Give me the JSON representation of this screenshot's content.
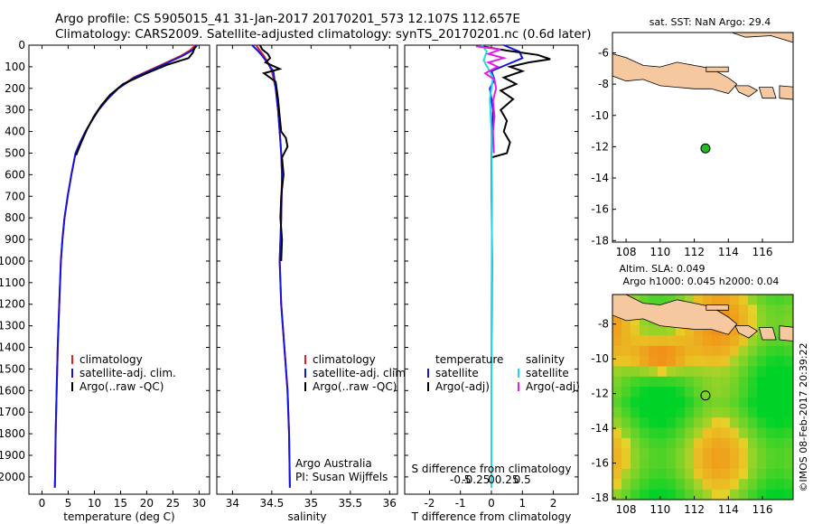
{
  "header": {
    "line1": "Argo profile: CS 5905015_41 31-Jan-2017 20170201_573 12.107S 112.657E",
    "line2": "Climatology: CARS2009. Satellite-adjusted climatology: synTS_20170201.nc (0.6d later)"
  },
  "colors": {
    "climatology": "#e02020",
    "satellite": "#1515e0",
    "argo": "#000000",
    "sal_satellite": "#20d8e8",
    "sal_argo": "#e020e0",
    "land": "#f5c8a0",
    "ocean_sst": "#ffffff",
    "float_marker": "#22bb22"
  },
  "depth_axis": {
    "ticks": [
      0,
      100,
      200,
      300,
      400,
      500,
      600,
      700,
      800,
      900,
      1000,
      1100,
      1200,
      1300,
      1400,
      1500,
      1600,
      1700,
      1800,
      1900,
      2000
    ],
    "ylim": [
      0,
      2080
    ]
  },
  "chart_data": [
    {
      "type": "line",
      "panel": "temperature",
      "xlabel": "temperature (deg C)",
      "xticks": [
        0,
        5,
        10,
        15,
        20,
        25,
        30
      ],
      "xlim": [
        -2.5,
        32
      ],
      "ylim": [
        0,
        2080
      ],
      "legend": [
        "climatology",
        "satellite-adj. clim.",
        "Argo(..raw -QC)"
      ],
      "series": [
        {
          "name": "climatology",
          "color": "#e02020",
          "x": [
            29.2,
            28.9,
            28.2,
            26.5,
            22.0,
            17.5,
            14.5,
            12.5,
            10.8,
            9.5,
            8.3,
            7.3,
            6.4,
            5.6,
            4.9,
            4.3,
            3.9,
            3.6,
            3.3,
            3.0,
            2.8,
            2.6,
            2.5,
            2.45
          ],
          "y": [
            0,
            10,
            25,
            50,
            100,
            150,
            200,
            250,
            300,
            350,
            400,
            450,
            500,
            600,
            700,
            800,
            900,
            1000,
            1200,
            1400,
            1600,
            1800,
            2000,
            2050
          ]
        },
        {
          "name": "satellite-adj. clim.",
          "color": "#1515e0",
          "x": [
            29.6,
            29.3,
            28.6,
            26.8,
            22.3,
            17.7,
            14.6,
            12.5,
            10.8,
            9.5,
            8.3,
            7.3,
            6.4,
            5.6,
            4.9,
            4.3,
            3.9,
            3.6,
            3.3,
            3.0,
            2.8,
            2.6,
            2.5,
            2.45
          ],
          "y": [
            0,
            10,
            25,
            50,
            100,
            150,
            200,
            250,
            300,
            350,
            400,
            450,
            500,
            600,
            700,
            800,
            900,
            1000,
            1200,
            1400,
            1600,
            1800,
            2000,
            2050
          ]
        },
        {
          "name": "Argo(..raw -QC)",
          "color": "#000000",
          "x": [
            29.4,
            29.1,
            28.8,
            28.0,
            24.0,
            20.0,
            15.5,
            13.0,
            11.3,
            9.9,
            8.6,
            7.5,
            6.5
          ],
          "y": [
            5,
            15,
            35,
            60,
            90,
            130,
            180,
            230,
            280,
            330,
            390,
            450,
            510
          ]
        }
      ]
    },
    {
      "type": "line",
      "panel": "salinity",
      "xlabel": "salinity",
      "xticks": [
        34,
        34.5,
        35,
        35.5,
        36
      ],
      "xlim": [
        33.8,
        36.1
      ],
      "ylim": [
        0,
        2080
      ],
      "legend": [
        "climatology",
        "satellite-adj. clim.",
        "Argo(..raw -QC)"
      ],
      "series": [
        {
          "name": "climatology",
          "color": "#e02020",
          "x": [
            34.3,
            34.35,
            34.4,
            34.45,
            34.5,
            34.55,
            34.58,
            34.6,
            34.62,
            34.63,
            34.62,
            34.6,
            34.62,
            34.66,
            34.7,
            34.72,
            34.73
          ],
          "y": [
            0,
            25,
            50,
            80,
            120,
            200,
            300,
            400,
            500,
            600,
            800,
            1000,
            1200,
            1400,
            1600,
            1800,
            2050
          ]
        },
        {
          "name": "satellite-adj. clim.",
          "color": "#1515e0",
          "x": [
            34.25,
            34.32,
            34.38,
            34.44,
            34.52,
            34.55,
            34.58,
            34.6,
            34.62,
            34.63,
            34.62,
            34.6,
            34.62,
            34.66,
            34.7,
            34.72,
            34.73
          ],
          "y": [
            0,
            25,
            50,
            80,
            120,
            200,
            300,
            400,
            500,
            600,
            800,
            1000,
            1200,
            1400,
            1600,
            1800,
            2050
          ]
        },
        {
          "name": "Argo(..raw -QC)",
          "color": "#000000",
          "x": [
            34.35,
            34.38,
            34.45,
            34.48,
            34.42,
            34.6,
            34.4,
            34.55,
            34.58,
            34.6,
            34.62,
            34.68,
            34.7,
            34.63,
            34.65,
            34.62,
            34.61,
            34.63,
            34.62
          ],
          "y": [
            0,
            20,
            40,
            60,
            80,
            110,
            130,
            170,
            250,
            330,
            400,
            430,
            470,
            520,
            600,
            700,
            800,
            900,
            1000
          ]
        }
      ]
    },
    {
      "type": "line",
      "panel": "difference",
      "xlabel": "T difference from climatology",
      "xlabel_top": "S difference from climatology",
      "xticks": [
        -2,
        -1,
        0,
        1,
        2
      ],
      "xticks_top": [
        "-0.5",
        "-0.25",
        "0",
        "0.25",
        "0.5"
      ],
      "xlim": [
        -2.8,
        2.8
      ],
      "ylim": [
        0,
        2080
      ],
      "legend_temperature": [
        "temperature",
        "satellite",
        "Argo(-adj)"
      ],
      "legend_salinity": [
        "salinity",
        "satellite",
        "Argo(-adj)"
      ],
      "series": [
        {
          "name": "T satellite",
          "color": "#1515e0",
          "x": [
            0.4,
            0.9,
            1.0,
            0.5,
            0.0,
            0.1,
            -0.05,
            0.05,
            0.0,
            0.02,
            0.0,
            0.0
          ],
          "y": [
            0,
            30,
            60,
            90,
            120,
            160,
            200,
            300,
            500,
            1000,
            1500,
            2050
          ]
        },
        {
          "name": "T Argo(-adj)",
          "color": "#000000",
          "x": [
            -0.3,
            0.5,
            1.5,
            1.9,
            1.2,
            0.6,
            1.0,
            0.4,
            0.8,
            0.3,
            0.7,
            0.3,
            0.5,
            0.4,
            0.6,
            0.5,
            0.0
          ],
          "y": [
            5,
            25,
            45,
            65,
            80,
            100,
            120,
            150,
            180,
            210,
            250,
            300,
            350,
            400,
            450,
            500,
            520
          ]
        },
        {
          "name": "S satellite",
          "color": "#20d8e8",
          "x": [
            -0.3,
            -0.15,
            -0.25,
            -0.1,
            0.05,
            -0.05,
            0.0,
            0.02,
            0.0,
            0.0
          ],
          "y": [
            0,
            30,
            70,
            110,
            150,
            250,
            400,
            700,
            1300,
            2050
          ]
        },
        {
          "name": "S Argo(-adj)",
          "color": "#e020e0",
          "x": [
            -0.5,
            0.3,
            -0.1,
            0.4,
            -0.1,
            0.2,
            -0.2,
            0.1,
            0.15,
            0.05,
            0.1,
            0.05,
            0.08
          ],
          "y": [
            5,
            20,
            40,
            60,
            80,
            100,
            130,
            160,
            200,
            260,
            330,
            400,
            500
          ]
        }
      ]
    },
    {
      "type": "map",
      "panel": "sst",
      "title": "sat. SST: NaN Argo: 29.4",
      "xticks": [
        108,
        110,
        112,
        114,
        116
      ],
      "yticks": [
        -6,
        -8,
        -10,
        -12,
        -14,
        -16,
        -18
      ],
      "xlim": [
        107.2,
        117.8
      ],
      "ylim": [
        -18.1,
        -4.7
      ],
      "float": {
        "lon": 112.657,
        "lat": -12.107
      }
    },
    {
      "type": "heatmap",
      "panel": "sla",
      "title": "Altim. SLA: 0.049",
      "subtitle": "Argo h1000: 0.045 h2000: 0.04",
      "xticks": [
        108,
        110,
        112,
        114,
        116
      ],
      "yticks": [
        -8,
        -10,
        -12,
        -14,
        -16,
        -18
      ],
      "xlim": [
        107.2,
        117.8
      ],
      "ylim": [
        -18.1,
        -6.3
      ],
      "float": {
        "lon": 112.657,
        "lat": -12.107
      }
    }
  ],
  "legend_temp": [
    "climatology",
    "satellite-adj. clim.",
    "Argo(..raw -QC)"
  ],
  "legend_sal": [
    "climatology",
    "satellite-adj. clim.",
    "Argo(..raw -QC)"
  ],
  "legend_diff_t": [
    "temperature",
    "satellite",
    "Argo(-adj)"
  ],
  "legend_diff_s": [
    "salinity",
    "satellite",
    "Argo(-adj)"
  ],
  "credit": [
    "Argo Australia",
    "PI: Susan Wijffels"
  ],
  "footer": "©IMOS 08-Feb-2017 20:39:22"
}
